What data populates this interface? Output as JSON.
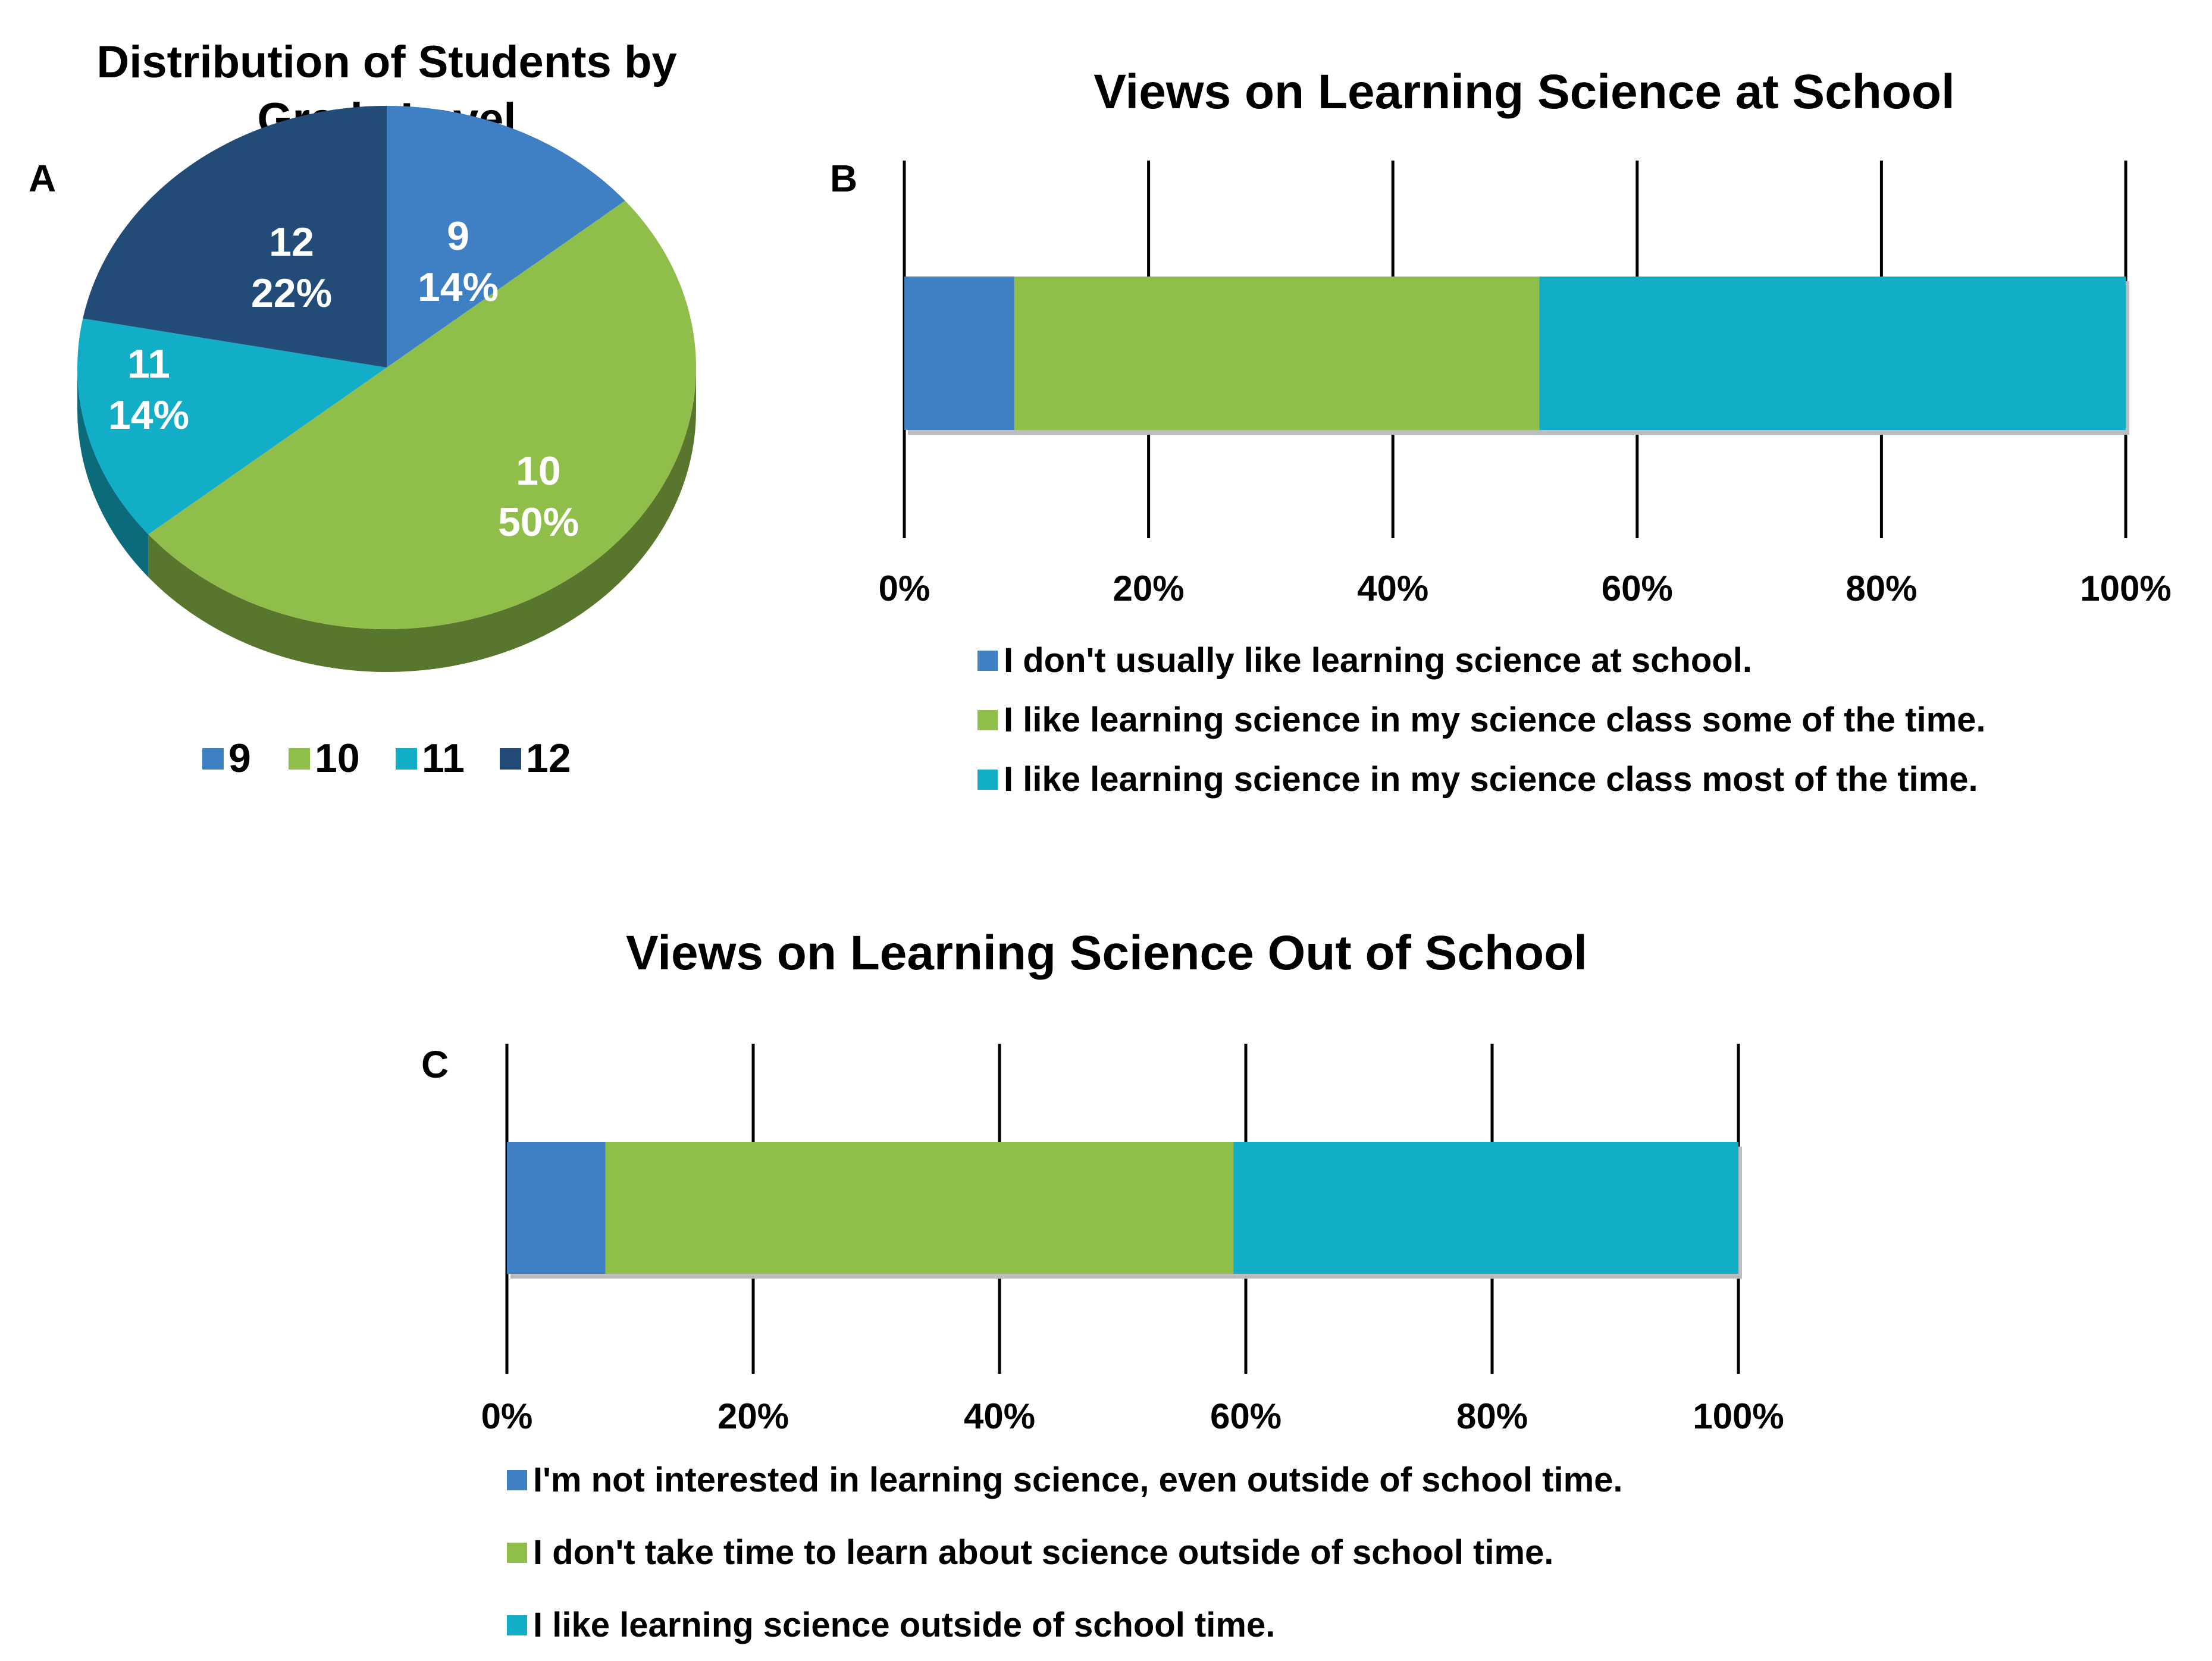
{
  "panel_labels": [
    "A",
    "B",
    "C"
  ],
  "colors": {
    "blue": "#3f7fc4",
    "green": "#8fbe4a",
    "cyan": "#12adc7",
    "navy": "#234b78",
    "green_side": "#5e7f2c",
    "blue_side": "#2d5f96",
    "grid": "#000000",
    "text": "#000000",
    "slice_label": "#ffffff"
  },
  "chart_data": [
    {
      "type": "pie",
      "panel": "A",
      "title": "Distribution of Students by Grade Level",
      "title_lines": [
        "Distribution of Students by",
        "Grade Level"
      ],
      "categories": [
        "9",
        "10",
        "11",
        "12"
      ],
      "values": [
        14,
        50,
        14,
        22
      ],
      "slice_labels": [
        {
          "name": "9",
          "pct": "14%"
        },
        {
          "name": "10",
          "pct": "50%"
        },
        {
          "name": "11",
          "pct": "14%"
        },
        {
          "name": "12",
          "pct": "22%"
        }
      ],
      "colors": [
        "#3f7fc4",
        "#8fbe4a",
        "#12adc7",
        "#234b78"
      ],
      "legend": [
        "9",
        "10",
        "11",
        "12"
      ],
      "legend_position": "bottom",
      "style": "3d"
    },
    {
      "type": "bar",
      "orientation": "horizontal",
      "stacked": true,
      "panel": "B",
      "title": "Views on Learning Science at School",
      "series": [
        {
          "name": "I don't usually like learning science at school.",
          "values": [
            9
          ]
        },
        {
          "name": "I like learning science in my science class some of the time.",
          "values": [
            43
          ]
        },
        {
          "name": "I like learning science in my science class most of the time.",
          "values": [
            48
          ]
        }
      ],
      "colors": [
        "#3f7fc4",
        "#8fbe4a",
        "#12adc7"
      ],
      "xlim": [
        0,
        100
      ],
      "xticks": [
        "0%",
        "20%",
        "40%",
        "60%",
        "80%",
        "100%"
      ],
      "grid": true,
      "legend_position": "bottom"
    },
    {
      "type": "bar",
      "orientation": "horizontal",
      "stacked": true,
      "panel": "C",
      "title": "Views on Learning Science Out of School",
      "series": [
        {
          "name": "I'm not interested in learning science, even outside of school time.",
          "values": [
            8
          ]
        },
        {
          "name": "I don't take time to learn about science outside of school time.",
          "values": [
            51
          ]
        },
        {
          "name": "I like learning science outside of school time.",
          "values": [
            41
          ]
        }
      ],
      "colors": [
        "#3f7fc4",
        "#8fbe4a",
        "#12adc7"
      ],
      "xlim": [
        0,
        100
      ],
      "xticks": [
        "0%",
        "20%",
        "40%",
        "60%",
        "80%",
        "100%"
      ],
      "grid": true,
      "legend_position": "bottom"
    }
  ]
}
